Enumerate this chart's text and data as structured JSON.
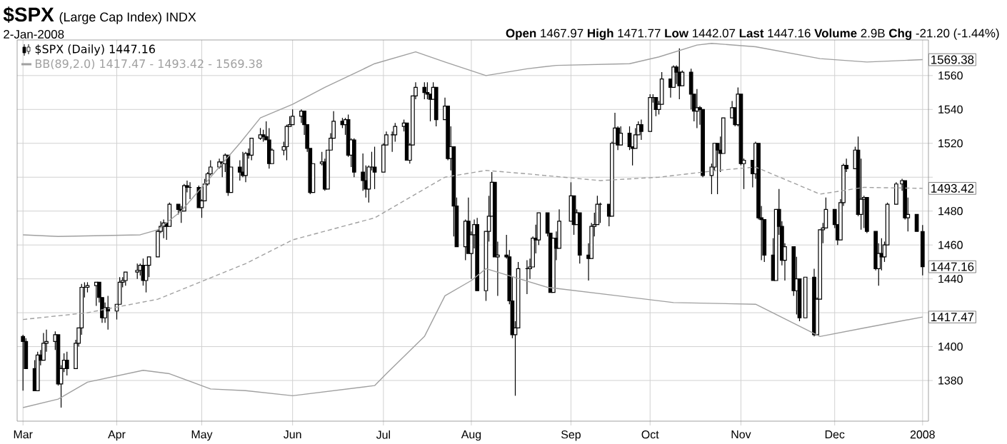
{
  "chart_data": {
    "type": "candlestick",
    "title": "$SPX",
    "subtitle": "(Large Cap Index) INDX",
    "annotations": [
      "2-Jan-2008",
      "**Open** 1467.97 **High** 1471.77 **Low** 1442.07 **Last** 1447.16 **Volume** 2.9B **Chg** -21.20 (-1.44%)",
      {
        "text": "1569.38",
        "x": "2008-01-02",
        "y": 1569.38
      },
      {
        "text": "1493.42",
        "x": "2008-01-02",
        "y": 1493.42
      },
      {
        "text": "1447.16",
        "x": "2008-01-02",
        "y": 1447.16
      },
      {
        "text": "1417.47",
        "x": "2008-01-02",
        "y": 1417.47
      }
    ],
    "xlim": [
      "2007-02-27",
      "2008-01-04"
    ],
    "xticks": [
      {
        "value": "2007-03-01",
        "label": "Mar"
      },
      {
        "value": "2007-04-02",
        "label": "Apr"
      },
      {
        "value": "2007-05-01",
        "label": "May"
      },
      {
        "value": "2007-06-01",
        "label": "Jun"
      },
      {
        "value": "2007-07-02",
        "label": "Jul"
      },
      {
        "value": "2007-08-01",
        "label": "Aug"
      },
      {
        "value": "2007-09-04",
        "label": "Sep"
      },
      {
        "value": "2007-10-01",
        "label": "Oct"
      },
      {
        "value": "2007-11-01",
        "label": "Nov"
      },
      {
        "value": "2007-12-03",
        "label": "Dec"
      },
      {
        "value": "2008-01-02",
        "label": "2008"
      }
    ],
    "ylim": [
      1356,
      1581
    ],
    "yticks": [
      1380,
      1400,
      {
        "value": 1420,
        "label": null
      },
      1440,
      1460,
      1480,
      {
        "value": 1500,
        "label": null
      },
      1520,
      1540,
      1560
    ],
    "grid": true,
    "legend": "top left",
    "series": [
      {
        "name": "$SPX (Daily) 1447.16",
        "color": "#000000",
        "x": [
          "2007-03-01",
          "2007-03-02",
          "2007-03-05",
          "2007-03-06",
          "2007-03-07",
          "2007-03-08",
          "2007-03-09",
          "2007-03-12",
          "2007-03-13",
          "2007-03-14",
          "2007-03-15",
          "2007-03-16",
          "2007-03-19",
          "2007-03-20",
          "2007-03-21",
          "2007-03-22",
          "2007-03-23",
          "2007-03-26",
          "2007-03-27",
          "2007-03-28",
          "2007-03-29",
          "2007-03-30",
          "2007-04-02",
          "2007-04-03",
          "2007-04-04",
          "2007-04-05",
          "2007-04-09",
          "2007-04-10",
          "2007-04-11",
          "2007-04-12",
          "2007-04-13",
          "2007-04-16",
          "2007-04-17",
          "2007-04-18",
          "2007-04-19",
          "2007-04-20",
          "2007-04-23",
          "2007-04-24",
          "2007-04-25",
          "2007-04-26",
          "2007-04-27",
          "2007-04-30",
          "2007-05-01",
          "2007-05-02",
          "2007-05-03",
          "2007-05-04",
          "2007-05-07",
          "2007-05-08",
          "2007-05-09",
          "2007-05-10",
          "2007-05-11",
          "2007-05-14",
          "2007-05-15",
          "2007-05-16",
          "2007-05-17",
          "2007-05-18",
          "2007-05-21",
          "2007-05-22",
          "2007-05-23",
          "2007-05-24",
          "2007-05-25",
          "2007-05-29",
          "2007-05-30",
          "2007-05-31",
          "2007-06-01",
          "2007-06-04",
          "2007-06-05",
          "2007-06-06",
          "2007-06-07",
          "2007-06-08",
          "2007-06-11",
          "2007-06-12",
          "2007-06-13",
          "2007-06-14",
          "2007-06-15",
          "2007-06-18",
          "2007-06-19",
          "2007-06-20",
          "2007-06-21",
          "2007-06-22",
          "2007-06-25",
          "2007-06-26",
          "2007-06-27",
          "2007-06-28",
          "2007-06-29",
          "2007-07-02",
          "2007-07-03",
          "2007-07-05",
          "2007-07-06",
          "2007-07-09",
          "2007-07-10",
          "2007-07-11",
          "2007-07-12",
          "2007-07-13",
          "2007-07-16",
          "2007-07-17",
          "2007-07-18",
          "2007-07-19",
          "2007-07-20",
          "2007-07-23",
          "2007-07-24",
          "2007-07-25",
          "2007-07-26",
          "2007-07-27",
          "2007-07-30",
          "2007-07-31",
          "2007-08-01",
          "2007-08-02",
          "2007-08-03",
          "2007-08-06",
          "2007-08-07",
          "2007-08-08",
          "2007-08-09",
          "2007-08-10",
          "2007-08-13",
          "2007-08-14",
          "2007-08-15",
          "2007-08-16",
          "2007-08-17",
          "2007-08-20",
          "2007-08-21",
          "2007-08-22",
          "2007-08-23",
          "2007-08-24",
          "2007-08-27",
          "2007-08-28",
          "2007-08-29",
          "2007-08-30",
          "2007-08-31",
          "2007-09-04",
          "2007-09-05",
          "2007-09-06",
          "2007-09-07",
          "2007-09-10",
          "2007-09-11",
          "2007-09-12",
          "2007-09-13",
          "2007-09-14",
          "2007-09-17",
          "2007-09-18",
          "2007-09-19",
          "2007-09-20",
          "2007-09-21",
          "2007-09-24",
          "2007-09-25",
          "2007-09-26",
          "2007-09-27",
          "2007-09-28",
          "2007-10-01",
          "2007-10-02",
          "2007-10-03",
          "2007-10-04",
          "2007-10-05",
          "2007-10-08",
          "2007-10-09",
          "2007-10-10",
          "2007-10-11",
          "2007-10-12",
          "2007-10-15",
          "2007-10-16",
          "2007-10-17",
          "2007-10-18",
          "2007-10-19",
          "2007-10-22",
          "2007-10-23",
          "2007-10-24",
          "2007-10-25",
          "2007-10-26",
          "2007-10-29",
          "2007-10-30",
          "2007-10-31",
          "2007-11-01",
          "2007-11-02",
          "2007-11-05",
          "2007-11-06",
          "2007-11-07",
          "2007-11-08",
          "2007-11-09",
          "2007-11-12",
          "2007-11-13",
          "2007-11-14",
          "2007-11-15",
          "2007-11-16",
          "2007-11-19",
          "2007-11-20",
          "2007-11-21",
          "2007-11-23",
          "2007-11-26",
          "2007-11-27",
          "2007-11-28",
          "2007-11-29",
          "2007-11-30",
          "2007-12-03",
          "2007-12-04",
          "2007-12-05",
          "2007-12-06",
          "2007-12-07",
          "2007-12-10",
          "2007-12-11",
          "2007-12-12",
          "2007-12-13",
          "2007-12-14",
          "2007-12-17",
          "2007-12-18",
          "2007-12-19",
          "2007-12-20",
          "2007-12-21",
          "2007-12-24",
          "2007-12-26",
          "2007-12-27",
          "2007-12-28",
          "2007-12-31",
          "2008-01-02"
        ],
        "ohlc": [
          [
            1406,
            1407,
            1374,
            1403
          ],
          [
            1403,
            1405,
            1387,
            1387
          ],
          [
            1387,
            1392,
            1374,
            1374
          ],
          [
            1374,
            1397,
            1374,
            1395
          ],
          [
            1395,
            1398,
            1389,
            1392
          ],
          [
            1392,
            1408,
            1392,
            1402
          ],
          [
            1402,
            1410,
            1397,
            1403
          ],
          [
            1403,
            1409,
            1398,
            1407
          ],
          [
            1407,
            1407,
            1377,
            1378
          ],
          [
            1378,
            1389,
            1364,
            1387
          ],
          [
            1387,
            1396,
            1385,
            1392
          ],
          [
            1392,
            1397,
            1383,
            1387
          ],
          [
            1387,
            1404,
            1387,
            1402
          ],
          [
            1402,
            1411,
            1400,
            1411
          ],
          [
            1411,
            1437,
            1407,
            1435
          ],
          [
            1435,
            1438,
            1429,
            1435
          ],
          [
            1435,
            1438,
            1432,
            1436
          ],
          [
            1436,
            1438,
            1424,
            1438
          ],
          [
            1438,
            1438,
            1426,
            1429
          ],
          [
            1429,
            1429,
            1414,
            1417
          ],
          [
            1417,
            1426,
            1414,
            1423
          ],
          [
            1423,
            1430,
            1410,
            1421
          ],
          [
            1421,
            1425,
            1416,
            1425
          ],
          [
            1425,
            1441,
            1425,
            1438
          ],
          [
            1438,
            1441,
            1435,
            1439
          ],
          [
            1439,
            1444,
            1436,
            1444
          ],
          [
            1444,
            1449,
            1440,
            1445
          ],
          [
            1445,
            1449,
            1442,
            1448
          ],
          [
            1448,
            1452,
            1436,
            1439
          ],
          [
            1439,
            1448,
            1432,
            1448
          ],
          [
            1448,
            1453,
            1441,
            1453
          ],
          [
            1453,
            1469,
            1453,
            1468
          ],
          [
            1468,
            1474,
            1467,
            1471
          ],
          [
            1471,
            1475,
            1464,
            1473
          ],
          [
            1473,
            1473,
            1463,
            1471
          ],
          [
            1471,
            1485,
            1471,
            1484
          ],
          [
            1484,
            1484,
            1478,
            1481
          ],
          [
            1481,
            1483,
            1473,
            1480
          ],
          [
            1480,
            1496,
            1480,
            1495
          ],
          [
            1495,
            1498,
            1491,
            1494
          ],
          [
            1494,
            1497,
            1487,
            1494
          ],
          [
            1494,
            1495,
            1482,
            1482
          ],
          [
            1482,
            1487,
            1476,
            1486
          ],
          [
            1486,
            1499,
            1486,
            1496
          ],
          [
            1496,
            1503,
            1495,
            1502
          ],
          [
            1502,
            1510,
            1501,
            1506
          ],
          [
            1506,
            1511,
            1505,
            1509
          ],
          [
            1509,
            1509,
            1500,
            1508
          ],
          [
            1508,
            1514,
            1503,
            1513
          ],
          [
            1513,
            1513,
            1489,
            1491
          ],
          [
            1491,
            1506,
            1491,
            1506
          ],
          [
            1506,
            1510,
            1498,
            1503
          ],
          [
            1503,
            1515,
            1500,
            1501
          ],
          [
            1501,
            1515,
            1497,
            1514
          ],
          [
            1514,
            1517,
            1511,
            1513
          ],
          [
            1513,
            1523,
            1510,
            1523
          ],
          [
            1523,
            1529,
            1522,
            1525
          ],
          [
            1525,
            1528,
            1521,
            1524
          ],
          [
            1524,
            1533,
            1522,
            1522
          ],
          [
            1522,
            1529,
            1505,
            1508
          ],
          [
            1508,
            1517,
            1508,
            1516
          ],
          [
            1516,
            1521,
            1513,
            1518
          ],
          [
            1518,
            1531,
            1510,
            1530
          ],
          [
            1530,
            1536,
            1530,
            1531
          ],
          [
            1531,
            1540,
            1531,
            1536
          ],
          [
            1536,
            1540,
            1532,
            1539
          ],
          [
            1539,
            1539,
            1525,
            1531
          ],
          [
            1531,
            1531,
            1515,
            1517
          ],
          [
            1517,
            1517,
            1490,
            1491
          ],
          [
            1491,
            1508,
            1491,
            1508
          ],
          [
            1508,
            1515,
            1507,
            1509
          ],
          [
            1509,
            1511,
            1492,
            1493
          ],
          [
            1493,
            1516,
            1493,
            1516
          ],
          [
            1516,
            1526,
            1516,
            1523
          ],
          [
            1523,
            1539,
            1523,
            1533
          ],
          [
            1533,
            1535,
            1529,
            1531
          ],
          [
            1531,
            1535,
            1525,
            1534
          ],
          [
            1534,
            1537,
            1512,
            1513
          ],
          [
            1513,
            1523,
            1506,
            1522
          ],
          [
            1522,
            1523,
            1500,
            1503
          ],
          [
            1503,
            1514,
            1492,
            1498
          ],
          [
            1498,
            1507,
            1488,
            1493
          ],
          [
            1493,
            1507,
            1485,
            1506
          ],
          [
            1506,
            1515,
            1504,
            1506
          ],
          [
            1506,
            1518,
            1493,
            1503
          ],
          [
            1503,
            1520,
            1503,
            1519
          ],
          [
            1519,
            1527,
            1519,
            1525
          ],
          [
            1525,
            1527,
            1515,
            1525
          ],
          [
            1525,
            1532,
            1521,
            1530
          ],
          [
            1530,
            1534,
            1527,
            1532
          ],
          [
            1532,
            1532,
            1510,
            1510
          ],
          [
            1510,
            1520,
            1508,
            1519
          ],
          [
            1519,
            1548,
            1519,
            1548
          ],
          [
            1548,
            1556,
            1546,
            1553
          ],
          [
            1553,
            1556,
            1546,
            1550
          ],
          [
            1550,
            1556,
            1546,
            1549
          ],
          [
            1549,
            1549,
            1533,
            1546
          ],
          [
            1546,
            1556,
            1546,
            1553
          ],
          [
            1553,
            1553,
            1530,
            1534
          ],
          [
            1534,
            1547,
            1534,
            1542
          ],
          [
            1542,
            1542,
            1510,
            1511
          ],
          [
            1511,
            1530,
            1504,
            1518
          ],
          [
            1518,
            1518,
            1465,
            1483
          ],
          [
            1483,
            1488,
            1459,
            1459
          ],
          [
            1459,
            1475,
            1451,
            1474
          ],
          [
            1474,
            1488,
            1455,
            1455
          ],
          [
            1455,
            1468,
            1440,
            1466
          ],
          [
            1466,
            1475,
            1458,
            1472
          ],
          [
            1472,
            1476,
            1433,
            1433
          ],
          [
            1433,
            1468,
            1427,
            1468
          ],
          [
            1468,
            1489,
            1462,
            1477
          ],
          [
            1477,
            1503,
            1477,
            1497
          ],
          [
            1497,
            1497,
            1453,
            1453
          ],
          [
            1453,
            1462,
            1430,
            1454
          ],
          [
            1454,
            1466,
            1452,
            1453
          ],
          [
            1453,
            1457,
            1425,
            1427
          ],
          [
            1427,
            1441,
            1405,
            1407
          ],
          [
            1407,
            1415,
            1371,
            1411
          ],
          [
            1411,
            1450,
            1411,
            1446
          ],
          [
            1446,
            1451,
            1431,
            1446
          ],
          [
            1446,
            1452,
            1440,
            1447
          ],
          [
            1447,
            1465,
            1447,
            1464
          ],
          [
            1464,
            1472,
            1455,
            1463
          ],
          [
            1463,
            1479,
            1460,
            1479
          ],
          [
            1479,
            1479,
            1465,
            1467
          ],
          [
            1467,
            1467,
            1432,
            1432
          ],
          [
            1432,
            1464,
            1432,
            1464
          ],
          [
            1464,
            1468,
            1451,
            1458
          ],
          [
            1458,
            1481,
            1458,
            1474
          ],
          [
            1474,
            1497,
            1474,
            1489
          ],
          [
            1489,
            1489,
            1466,
            1472
          ],
          [
            1472,
            1481,
            1472,
            1479
          ],
          [
            1479,
            1479,
            1449,
            1454
          ],
          [
            1454,
            1461,
            1439,
            1452
          ],
          [
            1452,
            1473,
            1452,
            1471
          ],
          [
            1471,
            1479,
            1465,
            1472
          ],
          [
            1472,
            1489,
            1472,
            1484
          ],
          [
            1484,
            1485,
            1473,
            1484
          ],
          [
            1484,
            1484,
            1471,
            1477
          ],
          [
            1477,
            1521,
            1477,
            1520
          ],
          [
            1520,
            1538,
            1520,
            1529
          ],
          [
            1529,
            1530,
            1516,
            1519
          ],
          [
            1519,
            1530,
            1519,
            1526
          ],
          [
            1526,
            1530,
            1516,
            1518
          ],
          [
            1518,
            1518,
            1507,
            1517
          ],
          [
            1517,
            1529,
            1517,
            1525
          ],
          [
            1525,
            1533,
            1525,
            1531
          ],
          [
            1531,
            1534,
            1522,
            1527
          ],
          [
            1527,
            1549,
            1527,
            1547
          ],
          [
            1547,
            1549,
            1544,
            1547
          ],
          [
            1547,
            1547,
            1536,
            1540
          ],
          [
            1540,
            1545,
            1537,
            1543
          ],
          [
            1543,
            1562,
            1543,
            1558
          ],
          [
            1558,
            1558,
            1547,
            1553
          ],
          [
            1553,
            1566,
            1553,
            1565
          ],
          [
            1565,
            1566,
            1555,
            1562
          ],
          [
            1562,
            1576,
            1546,
            1554
          ],
          [
            1554,
            1563,
            1554,
            1562
          ],
          [
            1562,
            1564,
            1540,
            1549
          ],
          [
            1549,
            1549,
            1533,
            1539
          ],
          [
            1539,
            1552,
            1529,
            1541
          ],
          [
            1541,
            1542,
            1531,
            1540
          ],
          [
            1540,
            1540,
            1500,
            1501
          ],
          [
            1501,
            1508,
            1490,
            1506
          ],
          [
            1506,
            1520,
            1504,
            1520
          ],
          [
            1520,
            1520,
            1490,
            1516
          ],
          [
            1516,
            1524,
            1503,
            1514
          ],
          [
            1514,
            1535,
            1514,
            1535
          ],
          [
            1535,
            1545,
            1535,
            1541
          ],
          [
            1541,
            1541,
            1530,
            1531
          ],
          [
            1531,
            1553,
            1530,
            1549
          ],
          [
            1549,
            1549,
            1507,
            1508
          ],
          [
            1508,
            1511,
            1493,
            1510
          ],
          [
            1510,
            1510,
            1494,
            1502
          ],
          [
            1502,
            1521,
            1499,
            1520
          ],
          [
            1520,
            1520,
            1475,
            1476
          ],
          [
            1476,
            1483,
            1451,
            1475
          ],
          [
            1475,
            1475,
            1450,
            1454
          ],
          [
            1454,
            1464,
            1439,
            1439
          ],
          [
            1439,
            1481,
            1439,
            1481
          ],
          [
            1481,
            1493,
            1466,
            1471
          ],
          [
            1471,
            1474,
            1448,
            1451
          ],
          [
            1451,
            1461,
            1439,
            1459
          ],
          [
            1459,
            1459,
            1430,
            1433
          ],
          [
            1433,
            1453,
            1419,
            1440
          ],
          [
            1440,
            1440,
            1415,
            1417
          ],
          [
            1417,
            1441,
            1417,
            1441
          ],
          [
            1441,
            1446,
            1406,
            1407
          ],
          [
            1407,
            1429,
            1407,
            1428
          ],
          [
            1428,
            1469,
            1428,
            1469
          ],
          [
            1469,
            1473,
            1461,
            1470
          ],
          [
            1470,
            1488,
            1470,
            1481
          ],
          [
            1481,
            1481,
            1470,
            1472
          ],
          [
            1472,
            1472,
            1460,
            1463
          ],
          [
            1463,
            1487,
            1463,
            1485
          ],
          [
            1485,
            1508,
            1483,
            1507
          ],
          [
            1507,
            1511,
            1503,
            1505
          ],
          [
            1505,
            1518,
            1505,
            1516
          ],
          [
            1516,
            1524,
            1477,
            1478
          ],
          [
            1478,
            1511,
            1469,
            1487
          ],
          [
            1487,
            1489,
            1470,
            1488
          ],
          [
            1488,
            1488,
            1467,
            1468
          ],
          [
            1468,
            1468,
            1445,
            1446
          ],
          [
            1446,
            1461,
            1436,
            1455
          ],
          [
            1455,
            1464,
            1445,
            1453
          ],
          [
            1453,
            1462,
            1450,
            1460
          ],
          [
            1460,
            1485,
            1460,
            1484
          ],
          [
            1484,
            1497,
            1484,
            1496
          ],
          [
            1496,
            1499,
            1492,
            1498
          ],
          [
            1498,
            1498,
            1475,
            1476
          ],
          [
            1476,
            1488,
            1468,
            1478
          ],
          [
            1478,
            1478,
            1468,
            1468
          ],
          [
            1467.97,
            1471.77,
            1442.07,
            1447.16
          ]
        ]
      },
      {
        "type": "line",
        "name": "BB(89,2.0) 1417.47 - 1493.42 - 1569.38",
        "color": "#a0a0a0",
        "x": [
          "2007-03-01",
          "2007-03-13",
          "2007-04-10",
          "2007-04-16",
          "2007-04-24",
          "2007-05-04",
          "2007-05-14",
          "2007-05-21",
          "2007-06-01",
          "2007-06-12",
          "2007-06-29",
          "2007-07-13",
          "2007-07-23",
          "2007-08-06",
          "2007-08-20",
          "2007-08-30",
          "2007-09-24",
          "2007-10-04",
          "2007-10-17",
          "2007-10-22",
          "2007-11-06",
          "2007-11-28",
          "2007-12-14",
          "2008-01-02"
        ],
        "values": [
          1466,
          1465,
          1466,
          1469,
          1480,
          1500,
          1520,
          1535,
          1543,
          1553,
          1567,
          1574,
          1568,
          1560,
          1564,
          1566,
          1567,
          1571,
          1578,
          1579,
          1577,
          1570,
          1568,
          1569.38
        ]
      },
      {
        "type": "line",
        "color": "#a0a0a0",
        "line_style": "dashed",
        "x": [
          "2007-03-01",
          "2007-03-23",
          "2007-04-16",
          "2007-05-16",
          "2007-06-01",
          "2007-06-29",
          "2007-07-23",
          "2007-08-06",
          "2007-08-20",
          "2007-09-14",
          "2007-10-04",
          "2007-10-24",
          "2007-11-06",
          "2007-11-28",
          "2007-12-13",
          "2008-01-02"
        ],
        "values": [
          1416,
          1420,
          1428,
          1449,
          1463,
          1476,
          1500,
          1504,
          1502,
          1498,
          1500,
          1504,
          1506,
          1490,
          1494,
          1493.42
        ]
      },
      {
        "type": "line",
        "color": "#a0a0a0",
        "x": [
          "2007-03-01",
          "2007-03-13",
          "2007-03-23",
          "2007-04-11",
          "2007-04-20",
          "2007-05-04",
          "2007-05-16",
          "2007-06-01",
          "2007-06-29",
          "2007-07-03",
          "2007-07-16",
          "2007-07-23",
          "2007-08-01",
          "2007-08-06",
          "2007-08-27",
          "2007-09-20",
          "2007-10-09",
          "2007-11-06",
          "2007-11-28",
          "2007-12-13",
          "2008-01-02"
        ],
        "values": [
          1364,
          1369,
          1379,
          1386,
          1384,
          1375,
          1374,
          1371,
          1377,
          1384,
          1406,
          1430,
          1439,
          1446,
          1435,
          1430,
          1426,
          1425,
          1406,
          1411,
          1417.47
        ]
      }
    ]
  }
}
